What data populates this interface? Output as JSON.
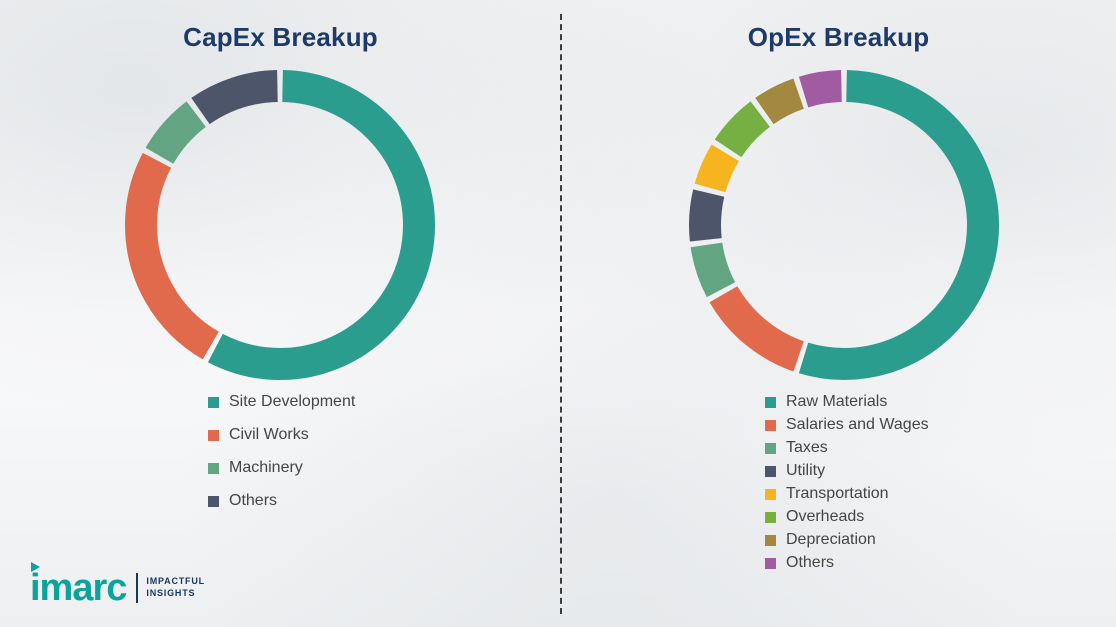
{
  "chart_data": [
    {
      "type": "donut",
      "title": "CapEx Breakup",
      "labels": [
        "Site Development",
        "Civil Works",
        "Machinery",
        "Others"
      ],
      "values": [
        58,
        25,
        7,
        10
      ],
      "colors": [
        "#2a9d8f",
        "#e16a4c",
        "#63a583",
        "#4c5569"
      ],
      "legend_position": "bottom",
      "grid": false
    },
    {
      "type": "donut",
      "title": "OpEx Breakup",
      "labels": [
        "Raw Materials",
        "Salaries and Wages",
        "Taxes",
        "Utility",
        "Transportation",
        "Overheads",
        "Depreciation",
        "Others"
      ],
      "values": [
        55,
        12,
        6,
        6,
        5,
        6,
        5,
        5
      ],
      "colors": [
        "#2a9d8f",
        "#e16a4c",
        "#63a583",
        "#4c5569",
        "#f6b51e",
        "#76b043",
        "#a3893f",
        "#a15ba3"
      ],
      "legend_position": "bottom",
      "grid": false
    }
  ],
  "divider": {
    "style": "dashed"
  },
  "logo": {
    "brand": "imarc",
    "tagline_line1": "IMPACTFUL",
    "tagline_line2": "INSIGHTS"
  }
}
